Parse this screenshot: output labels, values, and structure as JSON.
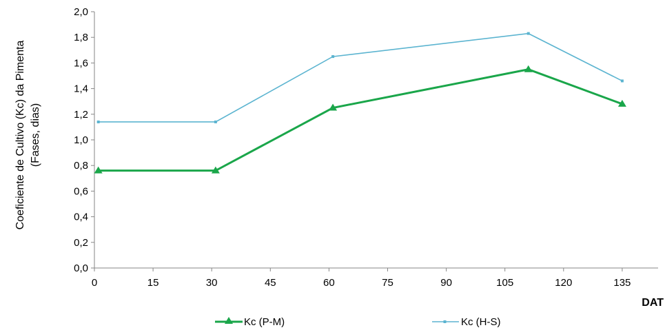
{
  "chart_data": {
    "type": "line",
    "x": [
      1,
      31,
      61,
      111,
      135
    ],
    "series": [
      {
        "name": "Kc (P-M)",
        "values": [
          0.76,
          0.76,
          1.25,
          1.55,
          1.28
        ],
        "color": "#1aa64a",
        "marker": "triangle"
      },
      {
        "name": "Kc (H-S)",
        "values": [
          1.14,
          1.14,
          1.65,
          1.83,
          1.46
        ],
        "color": "#5bb4d0",
        "marker": "square"
      }
    ],
    "xlabel": "DAT",
    "ylabel_lines": [
      "Coeficiente  de  Cultivo (Kc) da Pimenta",
      "(Fases, dias)"
    ],
    "xlim": [
      0,
      147
    ],
    "ylim": [
      0,
      2.0
    ],
    "x_ticks": [
      0,
      15,
      30,
      45,
      60,
      75,
      90,
      105,
      120,
      135
    ],
    "y_ticks": [
      0.0,
      0.2,
      0.4,
      0.6,
      0.8,
      1.0,
      1.2,
      1.4,
      1.6,
      1.8,
      2.0
    ],
    "y_tick_labels": [
      "0,0",
      "0,2",
      "0,4",
      "0,6",
      "0,8",
      "1,0",
      "1,2",
      "1,4",
      "1,6",
      "1,8",
      "2,0"
    ],
    "grid": false,
    "legend_position": "bottom"
  }
}
